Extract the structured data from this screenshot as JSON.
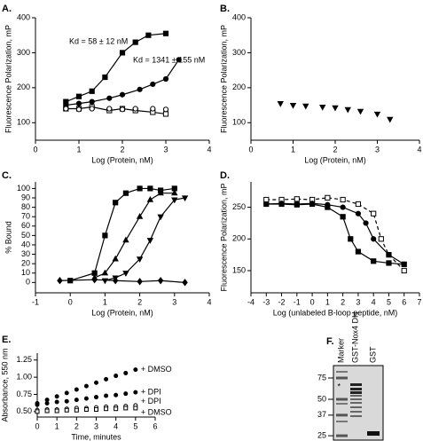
{
  "chart_data": [
    {
      "type": "scatter",
      "panel_label": "A.",
      "x_label": "Log (Protein, nM)",
      "y_label": "Fluorescence Polarization, mP",
      "xlim": [
        0,
        4
      ],
      "xticks": [
        0,
        1,
        2,
        3,
        4
      ],
      "ylim": [
        50,
        400
      ],
      "yticks": [
        100,
        200,
        300,
        400
      ],
      "annotations": [
        "Kd = 58 ± 12 nM",
        "Kd = 1341 ± 155 nM"
      ],
      "series": [
        {
          "marker": "square",
          "filled": true,
          "color": "#000000",
          "line": true,
          "x": [
            0.7,
            1.0,
            1.3,
            1.6,
            2.0,
            2.3,
            2.6,
            3.0
          ],
          "values": [
            160,
            175,
            190,
            230,
            300,
            330,
            350,
            355
          ]
        },
        {
          "marker": "circle",
          "filled": true,
          "color": "#000000",
          "line": true,
          "x": [
            0.7,
            1.0,
            1.3,
            1.7,
            2.0,
            2.4,
            2.7,
            3.0,
            3.3
          ],
          "values": [
            150,
            155,
            160,
            170,
            180,
            195,
            210,
            225,
            280
          ]
        },
        {
          "marker": "square",
          "filled": false,
          "color": "#000000",
          "line": true,
          "x": [
            0.7,
            1.0,
            1.3,
            1.7,
            2.0,
            2.3,
            2.7,
            3.0
          ],
          "values": [
            140,
            140,
            145,
            135,
            140,
            135,
            130,
            125
          ]
        },
        {
          "marker": "circle",
          "filled": false,
          "color": "#000000",
          "line": false,
          "x": [
            0.7,
            1.0,
            1.3,
            1.7,
            2.0,
            2.3,
            2.7,
            3.0
          ],
          "values": [
            140,
            138,
            140,
            140,
            138,
            140,
            140,
            138
          ]
        }
      ]
    },
    {
      "type": "scatter",
      "panel_label": "B.",
      "x_label": "Log (Protein, nM)",
      "y_label": "Fluorescence Polarization, mP",
      "xlim": [
        0,
        4
      ],
      "xticks": [
        0,
        1,
        2,
        3,
        4
      ],
      "ylim": [
        50,
        400
      ],
      "yticks": [
        100,
        200,
        300,
        400
      ],
      "series": [
        {
          "marker": "triangle-down",
          "filled": true,
          "color": "#000000",
          "line": false,
          "x": [
            0.7,
            1.0,
            1.3,
            1.7,
            2.0,
            2.3,
            2.6,
            3.0,
            3.3
          ],
          "values": [
            155,
            150,
            148,
            145,
            143,
            138,
            133,
            125,
            110
          ]
        }
      ]
    },
    {
      "type": "scatter",
      "panel_label": "C.",
      "x_label": "Log (Protein, nM)",
      "y_label": "% Bound",
      "xlim": [
        -1,
        4
      ],
      "xticks": [
        -1,
        0,
        1,
        2,
        3,
        4
      ],
      "ylim": [
        -11,
        107
      ],
      "yticks": [
        0,
        10,
        20,
        30,
        40,
        50,
        60,
        70,
        80,
        90,
        100
      ],
      "series": [
        {
          "marker": "square",
          "filled": true,
          "color": "#000000",
          "line": true,
          "x": [
            0,
            0.7,
            1.0,
            1.3,
            1.6,
            2.0,
            2.3,
            2.6,
            3.0
          ],
          "values": [
            2,
            10,
            50,
            85,
            95,
            100,
            100,
            98,
            100
          ]
        },
        {
          "marker": "triangle",
          "filled": true,
          "color": "#000000",
          "line": true,
          "x": [
            0.7,
            1.0,
            1.3,
            1.6,
            2.0,
            2.3,
            2.6,
            3.0
          ],
          "values": [
            5,
            10,
            25,
            45,
            70,
            88,
            95,
            95
          ]
        },
        {
          "marker": "triangle-down",
          "filled": true,
          "color": "#000000",
          "line": true,
          "x": [
            1.0,
            1.3,
            1.6,
            2.0,
            2.3,
            2.6,
            3.0,
            3.3
          ],
          "values": [
            2,
            5,
            10,
            25,
            45,
            70,
            88,
            90
          ]
        },
        {
          "marker": "diamond",
          "filled": true,
          "color": "#000000",
          "line": true,
          "x": [
            -0.3,
            0.7,
            1.3,
            2.0,
            2.6,
            3.3
          ],
          "values": [
            2,
            3,
            2,
            1,
            2,
            0
          ]
        }
      ]
    },
    {
      "type": "scatter",
      "panel_label": "D.",
      "x_label": "Log (unlabeled B-loop peptide, nM)",
      "y_label": "Fluorescence Polarization, mP",
      "xlim": [
        -4,
        7
      ],
      "xticks": [
        -4,
        -3,
        -2,
        -1,
        0,
        1,
        2,
        3,
        4,
        5,
        6,
        7
      ],
      "ylim": [
        115,
        290
      ],
      "yticks": [
        150,
        200,
        250
      ],
      "series": [
        {
          "marker": "square",
          "filled": true,
          "color": "#000000",
          "line": true,
          "x": [
            -3,
            -2,
            -1,
            0,
            1,
            2,
            2.5,
            3,
            4,
            5,
            6
          ],
          "values": [
            255,
            255,
            254,
            255,
            250,
            235,
            200,
            180,
            165,
            162,
            160
          ]
        },
        {
          "marker": "square",
          "filled": false,
          "color": "#000000",
          "line": true,
          "dash": true,
          "x": [
            -3,
            -2,
            -1,
            0,
            1,
            2,
            3,
            4,
            4.5,
            5,
            6
          ],
          "values": [
            262,
            262,
            263,
            262,
            265,
            262,
            255,
            240,
            200,
            175,
            150
          ]
        },
        {
          "marker": "circle",
          "filled": true,
          "color": "#000000",
          "line": true,
          "x": [
            -3,
            -2,
            -1,
            0,
            1,
            2,
            3,
            3.5,
            4,
            5,
            6
          ],
          "values": [
            255,
            256,
            255,
            256,
            254,
            250,
            240,
            225,
            200,
            175,
            160
          ]
        }
      ]
    },
    {
      "type": "scatter",
      "panel_label": "E.",
      "x_label": "Time, minutes",
      "y_label": "Absorbance, 550 nm",
      "xlim": [
        0,
        6
      ],
      "xticks": [
        0,
        1,
        2,
        3,
        4,
        5,
        6
      ],
      "ylim": [
        0.42,
        1.35
      ],
      "yticks": [
        {
          "value": 0.5,
          "label": "0.50"
        },
        0.75,
        {
          "value": 1.0,
          "label": "1.00"
        },
        1.25
      ],
      "series": [
        {
          "name": "+ DMSO",
          "marker": "circle",
          "filled": true,
          "color": "#000000",
          "line": false,
          "x": [
            0,
            0.5,
            1,
            1.5,
            2,
            2.5,
            3,
            3.5,
            4,
            4.5,
            5
          ],
          "values": [
            0.62,
            0.67,
            0.72,
            0.77,
            0.82,
            0.87,
            0.92,
            0.97,
            1.02,
            1.06,
            1.11
          ]
        },
        {
          "name": "+ DPI",
          "marker": "circle",
          "filled": true,
          "color": "#000000",
          "line": false,
          "x": [
            0,
            0.5,
            1,
            1.5,
            2,
            2.5,
            3,
            3.5,
            4,
            4.5,
            5
          ],
          "values": [
            0.6,
            0.62,
            0.64,
            0.65,
            0.67,
            0.69,
            0.71,
            0.73,
            0.74,
            0.76,
            0.78
          ]
        },
        {
          "name": "+ DPI",
          "marker": "circle",
          "filled": false,
          "color": "#000000",
          "line": false,
          "x": [
            0,
            0.5,
            1,
            1.5,
            2,
            2.5,
            3,
            3.5,
            4,
            4.5,
            5
          ],
          "values": [
            0.52,
            0.53,
            0.53,
            0.54,
            0.55,
            0.55,
            0.56,
            0.57,
            0.57,
            0.58,
            0.59
          ]
        },
        {
          "name": "+ DMSO",
          "marker": "square",
          "filled": false,
          "color": "#000000",
          "line": false,
          "x": [
            0,
            0.5,
            1,
            1.5,
            2,
            2.5,
            3,
            3.5,
            4,
            4.5,
            5
          ],
          "values": [
            0.5,
            0.51,
            0.51,
            0.52,
            0.52,
            0.53,
            0.53,
            0.54,
            0.54,
            0.55,
            0.55
          ]
        }
      ]
    },
    {
      "type": "gel",
      "panel_label": "F.",
      "lanes": [
        "Marker",
        "GST-Nox4 DH",
        "GST"
      ],
      "ylim": [
        23,
        95
      ],
      "log": true,
      "yticks": [
        75,
        50,
        37,
        25
      ],
      "annotations": [
        "*"
      ]
    }
  ]
}
